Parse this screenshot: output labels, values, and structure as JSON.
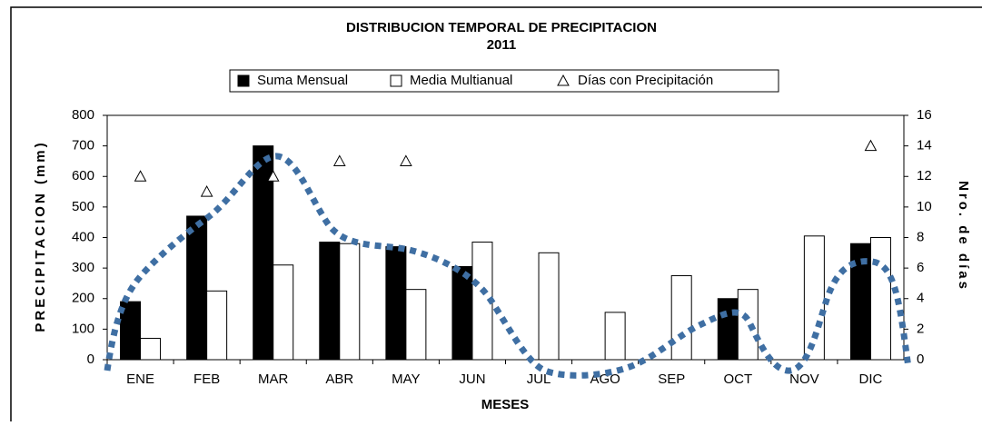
{
  "chart_data": {
    "type": "bar",
    "title": "DISTRIBUCION TEMPORAL DE PRECIPITACION",
    "subtitle": "2011",
    "x_label": "MESES",
    "y_label": "PRECIPITACION (mm)",
    "y2_label": "Nro. de días",
    "categories": [
      "ENE",
      "FEB",
      "MAR",
      "ABR",
      "MAY",
      "JUN",
      "JUL",
      "AGO",
      "SEP",
      "OCT",
      "NOV",
      "DIC"
    ],
    "series": [
      {
        "name": "Suma Mensual",
        "color": "#000000",
        "values": [
          190,
          470,
          700,
          385,
          370,
          305,
          null,
          null,
          null,
          200,
          null,
          380
        ]
      },
      {
        "name": "Media Multianual",
        "color": "#ffffff",
        "values": [
          70,
          225,
          310,
          380,
          230,
          385,
          350,
          155,
          275,
          230,
          405,
          400
        ]
      },
      {
        "name": "Días con Precipitación",
        "color": "#000000",
        "axis": "y2",
        "values": [
          12,
          11,
          12,
          13,
          13,
          null,
          null,
          null,
          null,
          null,
          null,
          14
        ]
      }
    ],
    "ylim": [
      0,
      800
    ],
    "yticks": [
      0,
      100,
      200,
      300,
      400,
      500,
      600,
      700,
      800
    ],
    "y2lim": [
      0,
      16
    ],
    "y2ticks": [
      0,
      2,
      4,
      6,
      8,
      10,
      12,
      14,
      16
    ]
  }
}
